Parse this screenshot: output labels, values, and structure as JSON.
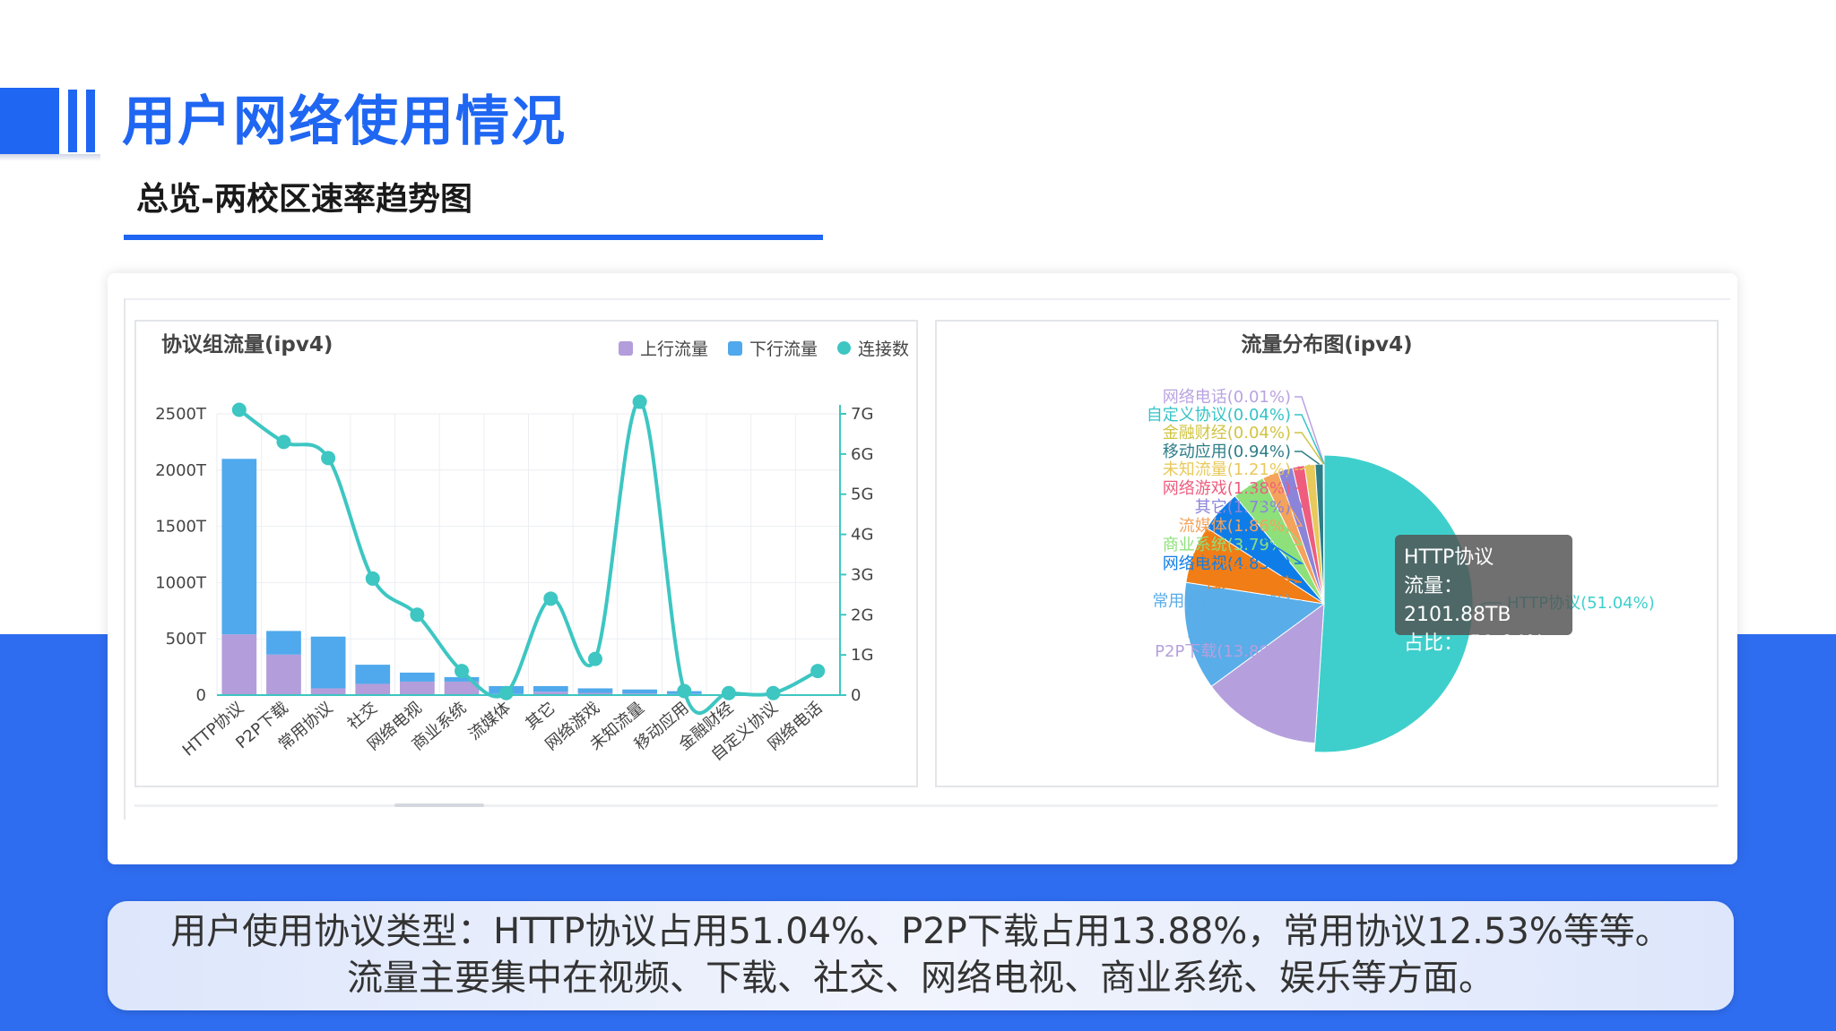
{
  "header": {
    "title": "用户网络使用情况",
    "subtitle": "总览-两校区速率趋势图"
  },
  "colors": {
    "accent": "#1f66f2",
    "band": "#2f6df0"
  },
  "left_chart": {
    "title": "协议组流量(ipv4)",
    "legend": [
      {
        "label": "上行流量",
        "color": "#b39ddb",
        "shape": "square"
      },
      {
        "label": "下行流量",
        "color": "#4fa9ec",
        "shape": "square"
      },
      {
        "label": "连接数",
        "color": "#3dc6c2",
        "shape": "circle"
      }
    ]
  },
  "right_chart": {
    "title": "流量分布图(ipv4)"
  },
  "tooltip": {
    "title": "HTTP协议",
    "line1": "流量： 2101.88TB",
    "line2": "占比： 51.04%"
  },
  "summary": {
    "line1": "用户使用协议类型：HTTP协议占用51.04%、P2P下载占用13.88%，常用协议12.53%等等。",
    "line2": "流量主要集中在视频、下载、社交、网络电视、商业系统、娱乐等方面。"
  },
  "chart_data": [
    {
      "type": "bar",
      "title": "协议组流量(ipv4)",
      "categories": [
        "HTTP协议",
        "P2P下载",
        "常用协议",
        "社交",
        "网络电视",
        "商业系统",
        "流媒体",
        "其它",
        "网络游戏",
        "未知流量",
        "移动应用",
        "金融财经",
        "自定义协议",
        "网络电话"
      ],
      "series": [
        {
          "name": "上行流量",
          "values": [
            540,
            360,
            60,
            100,
            120,
            120,
            10,
            30,
            20,
            15,
            10,
            3,
            3,
            1
          ],
          "color": "#b39ddb",
          "stack": "traffic"
        },
        {
          "name": "下行流量",
          "values": [
            1560,
            210,
            460,
            170,
            80,
            40,
            70,
            50,
            40,
            35,
            25,
            5,
            5,
            2
          ],
          "color": "#4fa9ec",
          "stack": "traffic"
        },
        {
          "name": "连接数",
          "values": [
            7.1,
            6.3,
            5.9,
            2.9,
            2.0,
            0.6,
            0.05,
            2.4,
            0.9,
            7.3,
            0.1,
            0.05,
            0.05,
            0.6
          ],
          "color": "#3dc6c2",
          "type": "line",
          "axis": "right"
        }
      ],
      "y_left": {
        "ylim": [
          0,
          2500
        ],
        "ticks": [
          "0",
          "500T",
          "1000T",
          "1500T",
          "2000T",
          "2500T"
        ],
        "tick_values": [
          0,
          500,
          1000,
          1500,
          2000,
          2500
        ]
      },
      "y_right": {
        "ylim": [
          0,
          7
        ],
        "ticks": [
          "0",
          "1G",
          "2G",
          "3G",
          "4G",
          "5G",
          "6G",
          "7G"
        ],
        "tick_values": [
          0,
          1,
          2,
          3,
          4,
          5,
          6,
          7
        ]
      },
      "grid": true,
      "legend_position": "top-right"
    },
    {
      "type": "pie",
      "title": "流量分布图(ipv4)",
      "slices": [
        {
          "label": "HTTP协议(51.04%)",
          "value": 51.04,
          "color": "#3ecfcc"
        },
        {
          "label": "P2P下载(13.88%)",
          "value": 13.88,
          "color": "#b5a0dd"
        },
        {
          "label": "常用协议(12.53%)",
          "value": 12.53,
          "color": "#59ade9"
        },
        {
          "label": "社交(6.7%)",
          "value": 6.7,
          "color": "#f07d16"
        },
        {
          "label": "网络电视(4.85%)",
          "value": 4.85,
          "color": "#0f7de8"
        },
        {
          "label": "商业系统(3.79%)",
          "value": 3.79,
          "color": "#8de07a"
        },
        {
          "label": "流媒体(1.86%)",
          "value": 1.86,
          "color": "#f4a35c"
        },
        {
          "label": "其它(1.73%)",
          "value": 1.73,
          "color": "#8b84d9"
        },
        {
          "label": "网络游戏(1.38%)",
          "value": 1.38,
          "color": "#ee5d7e"
        },
        {
          "label": "未知流量(1.21%)",
          "value": 1.21,
          "color": "#e8c95b"
        },
        {
          "label": "移动应用(0.94%)",
          "value": 0.94,
          "color": "#2e7d86"
        },
        {
          "label": "金融财经(0.04%)",
          "value": 0.04,
          "color": "#d1c441"
        },
        {
          "label": "自定义协议(0.04%)",
          "value": 0.04,
          "color": "#35c3c6"
        },
        {
          "label": "网络电话(0.01%)",
          "value": 0.01,
          "color": "#b9a3e0"
        }
      ]
    }
  ]
}
